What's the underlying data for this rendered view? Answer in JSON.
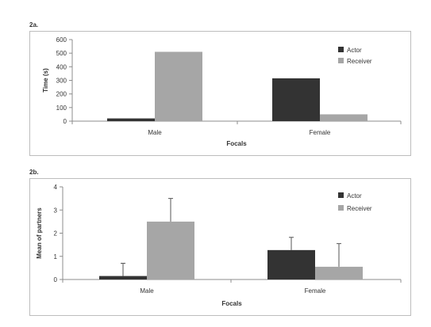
{
  "panels": [
    {
      "label": "2a."
    },
    {
      "label": "2b."
    }
  ],
  "chart_data": [
    {
      "type": "bar",
      "categories": [
        "Male",
        "Female"
      ],
      "series": [
        {
          "name": "Actor",
          "values": [
            20,
            315
          ],
          "color": "#333333"
        },
        {
          "name": "Receiver",
          "values": [
            510,
            50
          ],
          "color": "#a6a6a6"
        }
      ],
      "xlabel": "Focals",
      "ylabel": "Time (s)",
      "ylim": [
        0,
        600
      ],
      "yticks": [
        0,
        100,
        200,
        300,
        400,
        500,
        600
      ],
      "legend": "top-right",
      "grid": false
    },
    {
      "type": "bar",
      "categories": [
        "Male",
        "Female"
      ],
      "series": [
        {
          "name": "Actor",
          "values": [
            0.15,
            1.27
          ],
          "errors": [
            0.55,
            0.55
          ],
          "color": "#333333"
        },
        {
          "name": "Receiver",
          "values": [
            2.5,
            0.55
          ],
          "errors": [
            1.0,
            1.0
          ],
          "color": "#a6a6a6"
        }
      ],
      "xlabel": "Focals",
      "ylabel": "Mean of partners",
      "ylim": [
        0,
        4
      ],
      "yticks": [
        0,
        1,
        2,
        3,
        4
      ],
      "legend": "top-right",
      "grid": false
    }
  ]
}
